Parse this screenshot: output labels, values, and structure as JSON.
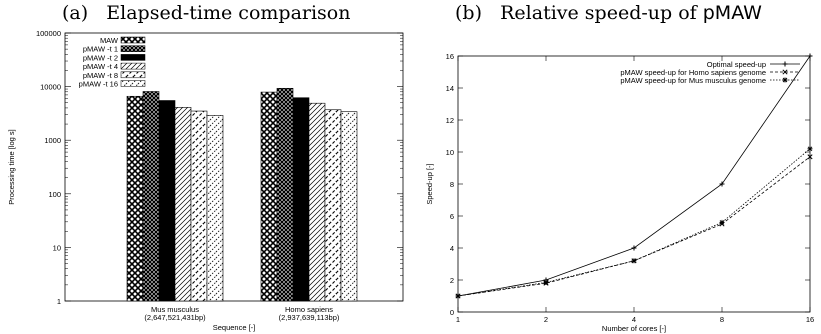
{
  "chart_data": [
    {
      "type": "bar",
      "panel_label": "(a)",
      "title": "Elapsed-time comparison",
      "xlabel": "Sequence [-]",
      "ylabel": "Processing time [log s]",
      "yscale": "log",
      "ylim": [
        1,
        100000
      ],
      "yticks": [
        "1",
        "10",
        "100",
        "1000",
        "10000",
        "100000"
      ],
      "categories": [
        {
          "name": "Mus musculus",
          "sub": "(2,647,521,431bp)"
        },
        {
          "name": "Homo sapiens",
          "sub": "(2,937,639,113bp)"
        }
      ],
      "legend_position": "top-left",
      "series": [
        {
          "name": "MAW",
          "values": [
            6600,
            7900
          ]
        },
        {
          "name": "pMAW -t 1",
          "values": [
            8100,
            9300
          ]
        },
        {
          "name": "pMAW -t 2",
          "values": [
            5500,
            6200
          ]
        },
        {
          "name": "pMAW -t 4",
          "values": [
            4100,
            4900
          ]
        },
        {
          "name": "pMAW -t 8",
          "values": [
            3500,
            3700
          ]
        },
        {
          "name": "pMAW -t 16",
          "values": [
            2900,
            3400
          ]
        }
      ]
    },
    {
      "type": "line",
      "panel_label": "(b)",
      "title_prefix": "Relative speed-up of",
      "title_name": "pMAW",
      "xlabel": "Number of cores [-]",
      "ylabel": "Speed-up [-]",
      "xscale": "log2",
      "xticks": [
        "1",
        "2",
        "4",
        "8",
        "16"
      ],
      "x": [
        1,
        2,
        4,
        8,
        16
      ],
      "ylim": [
        0,
        16
      ],
      "yticks": [
        "0",
        "2",
        "4",
        "6",
        "8",
        "10",
        "12",
        "14",
        "16"
      ],
      "legend_position": "top-left",
      "series": [
        {
          "name": "Optimal speed-up",
          "values": [
            1,
            2,
            4,
            8,
            16
          ]
        },
        {
          "name": "pMAW speed-up for Homo sapiens genome",
          "values": [
            1,
            1.8,
            3.2,
            5.5,
            9.7
          ]
        },
        {
          "name": "pMAW speed-up for Mus musculus genome",
          "values": [
            1,
            1.85,
            3.2,
            5.6,
            10.2
          ]
        }
      ]
    }
  ]
}
